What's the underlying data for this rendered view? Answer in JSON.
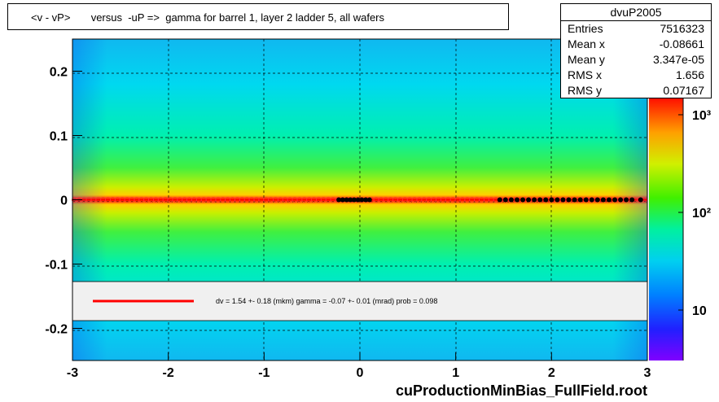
{
  "title": "<v - vP>       versus  -uP =>  gamma for barrel 1, layer 2 ladder 5, all wafers",
  "stats": {
    "name": "dvuP2005",
    "rows": [
      {
        "k": "Entries",
        "v": "7516323"
      },
      {
        "k": "Mean x",
        "v": "-0.08661"
      },
      {
        "k": "Mean y",
        "v": "3.347e-05"
      },
      {
        "k": "RMS x",
        "v": "1.656"
      },
      {
        "k": "RMS y",
        "v": "0.07167"
      }
    ]
  },
  "legend_fit_text": "dv =    1.54 +-  0.18 (mkm) gamma =   -0.07 +-  0.01 (mrad) prob = 0.098",
  "footer": "cuProductionMinBias_FullField.root",
  "colors": {
    "fit_line": "#ff0000",
    "marker": "#000000",
    "band_core": "#ff2000",
    "band_mid": "#ffe000",
    "background_field": "#00d8f0"
  },
  "chart_data": {
    "type": "heatmap",
    "title": "<v - vP>       versus  -uP =>  gamma for barrel 1, layer 2 ladder 5, all wafers",
    "xlim": [
      -3,
      3
    ],
    "ylim": [
      -0.25,
      0.25
    ],
    "x_ticks": [
      "-3",
      "-2",
      "-1",
      "0",
      "1",
      "2",
      "3"
    ],
    "y_ticks": [
      "-0.2",
      "-0.1",
      "0",
      "0.1",
      "0.2"
    ],
    "z_scale": "log",
    "z_ticks": [
      "10",
      "10²",
      "10³"
    ],
    "grid": true,
    "profile_points": {
      "x": [
        -0.22,
        -0.18,
        -0.14,
        -0.1,
        -0.06,
        -0.02,
        0.02,
        0.06,
        0.1,
        1.46,
        1.52,
        1.58,
        1.64,
        1.7,
        1.76,
        1.82,
        1.88,
        1.94,
        2.0,
        2.06,
        2.12,
        2.18,
        2.24,
        2.3,
        2.36,
        2.42,
        2.48,
        2.54,
        2.6,
        2.66,
        2.72,
        2.78,
        2.84,
        2.93
      ],
      "y": [
        0.0,
        0.0,
        0.0,
        0.0,
        0.0,
        0.0,
        0.0,
        0.0,
        0.0,
        0.0,
        0.0,
        0.0,
        0.0,
        0.0,
        0.0,
        0.0,
        0.0,
        0.0,
        0.0,
        0.0,
        0.0,
        0.0,
        0.0,
        0.0,
        0.0,
        0.0,
        0.0,
        0.0,
        0.0,
        0.0,
        0.0,
        0.0,
        0.0,
        0.0
      ]
    },
    "fit": {
      "dv": 1.54,
      "dv_err": 0.18,
      "gamma": -0.07,
      "gamma_err": 0.01,
      "prob": 0.098
    }
  }
}
